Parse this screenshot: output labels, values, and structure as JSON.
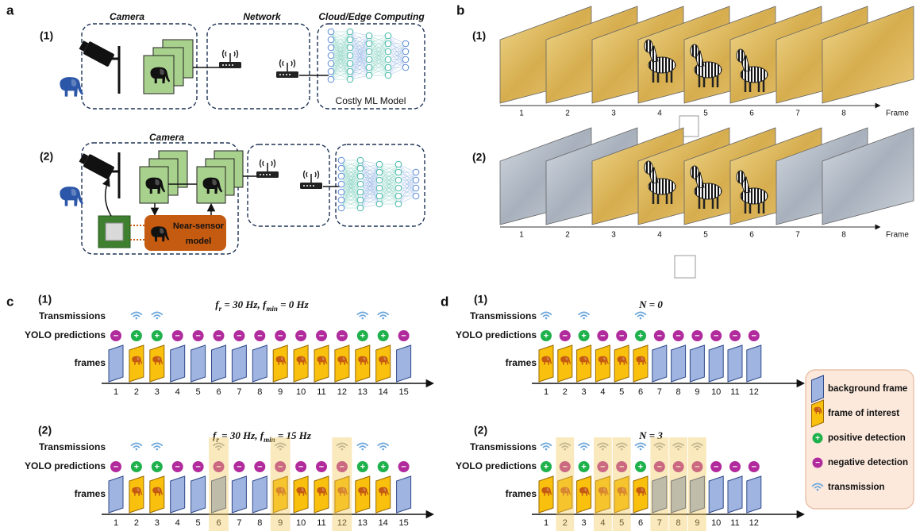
{
  "panel_a": {
    "label": "a",
    "row1": {
      "label": "(1)",
      "camera": "Camera",
      "network": "Network",
      "cloud": "Cloud/Edge Computing",
      "model": "Costly ML Model"
    },
    "row2": {
      "label": "(2)",
      "camera": "Camera",
      "near_sensor": [
        "Near-sensor",
        "model"
      ]
    }
  },
  "panel_b": {
    "label": "b",
    "rows": [
      {
        "label": "(1)",
        "frames": [
          1,
          2,
          3,
          4,
          5,
          6,
          7,
          8
        ],
        "axis_label": "Frame"
      },
      {
        "label": "(2)",
        "frames": [
          1,
          2,
          3,
          4,
          5,
          6,
          7,
          8
        ],
        "axis_label": "Frame",
        "dimmed": [
          1,
          2,
          7,
          8
        ]
      }
    ]
  },
  "panel_c": {
    "label": "c",
    "rows": [
      {
        "label": "(1)",
        "title": [
          {
            "text": "f"
          },
          {
            "text": "r",
            "sub": true
          },
          {
            "text": " = 30 Hz, "
          },
          {
            "text": "f"
          },
          {
            "text": "min",
            "sub": true
          },
          {
            "text": " = 0 Hz"
          }
        ],
        "transmissions_label": "Transmissions",
        "predictions_label": "YOLO predictions",
        "frames_label": "frames",
        "frames": [
          1,
          2,
          3,
          4,
          5,
          6,
          7,
          8,
          9,
          10,
          11,
          12,
          13,
          14,
          15
        ],
        "interest": [
          2,
          3,
          9,
          10,
          11,
          12,
          13,
          14
        ],
        "predictions": [
          "−",
          "+",
          "+",
          "−",
          "−",
          "−",
          "−",
          "−",
          "−",
          "−",
          "−",
          "−",
          "+",
          "+",
          "−"
        ],
        "transmissions": [
          2,
          3,
          13,
          14
        ]
      },
      {
        "label": "(2)",
        "title": [
          {
            "text": "f"
          },
          {
            "text": "r",
            "sub": true
          },
          {
            "text": " = 30 Hz, "
          },
          {
            "text": "f"
          },
          {
            "text": "min",
            "sub": true
          },
          {
            "text": " = 15 Hz"
          }
        ],
        "transmissions_label": "Transmissions",
        "predictions_label": "YOLO predictions",
        "frames_label": "frames",
        "frames": [
          1,
          2,
          3,
          4,
          5,
          6,
          7,
          8,
          9,
          10,
          11,
          12,
          13,
          14,
          15
        ],
        "interest": [
          2,
          3,
          9,
          10,
          11,
          12,
          13,
          14
        ],
        "predictions": [
          "−",
          "+",
          "+",
          "−",
          "−",
          "−",
          "−",
          "−",
          "−",
          "−",
          "−",
          "−",
          "+",
          "+",
          "−"
        ],
        "transmissions": [
          2,
          3,
          6,
          9,
          12,
          13,
          14
        ],
        "highlighted": [
          6,
          9,
          12
        ]
      }
    ]
  },
  "panel_d": {
    "label": "d",
    "rows": [
      {
        "label": "(1)",
        "title": [
          {
            "text": "N = 0"
          }
        ],
        "transmissions_label": "Transmissions",
        "predictions_label": "YOLO predictions",
        "frames_label": "frames",
        "frames": [
          1,
          2,
          3,
          4,
          5,
          6,
          7,
          8,
          9,
          10,
          11,
          12
        ],
        "interest": [
          1,
          2,
          3,
          4,
          5,
          6
        ],
        "predictions": [
          "+",
          "−",
          "+",
          "−",
          "−",
          "+",
          "−",
          "−",
          "−",
          "−",
          "−",
          "−"
        ],
        "transmissions": [
          1,
          3,
          6
        ]
      },
      {
        "label": "(2)",
        "title": [
          {
            "text": "N = 3"
          }
        ],
        "transmissions_label": "Transmissions",
        "predictions_label": "YOLO predictions",
        "frames_label": "frames",
        "frames": [
          1,
          2,
          3,
          4,
          5,
          6,
          7,
          8,
          9,
          10,
          11,
          12
        ],
        "interest": [
          1,
          2,
          3,
          4,
          5,
          6
        ],
        "predictions": [
          "+",
          "−",
          "+",
          "−",
          "−",
          "+",
          "−",
          "−",
          "−",
          "−",
          "−",
          "−"
        ],
        "transmissions": [
          1,
          2,
          3,
          4,
          5,
          6,
          7,
          8,
          9
        ],
        "highlighted": [
          2,
          4,
          5,
          7,
          8,
          9
        ]
      }
    ]
  },
  "legend": [
    {
      "label": "background frame"
    },
    {
      "label": "frame of interest"
    },
    {
      "symbol": "+",
      "label": "positive detection"
    },
    {
      "symbol": "−",
      "label": "negative detection"
    },
    {
      "label": "transmission"
    }
  ]
}
